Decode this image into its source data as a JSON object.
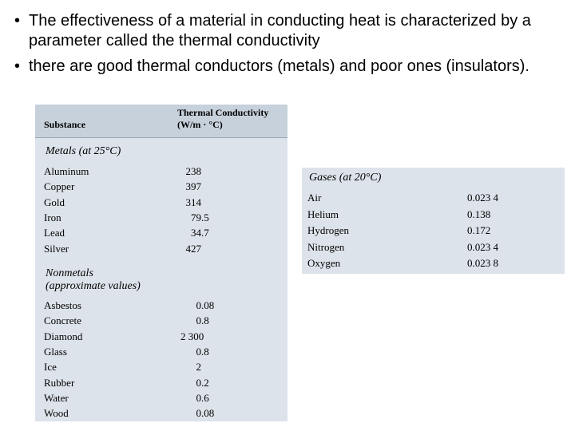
{
  "bullets": [
    "The effectiveness of a material in conducting heat is characterized by a parameter called the thermal conductivity",
    "there are good thermal conductors (metals) and poor ones (insulators)."
  ],
  "bullet_char": "•",
  "table1": {
    "col_substance": "Substance",
    "col_tc_line1": "Thermal Conductivity",
    "col_tc_line2": "(W/m · °C)",
    "metals_title": "Metals (at 25°C)",
    "metals": [
      {
        "name": "Aluminum",
        "value": "238"
      },
      {
        "name": "Copper",
        "value": "397"
      },
      {
        "name": "Gold",
        "value": "314"
      },
      {
        "name": "Iron",
        "value": "79.5"
      },
      {
        "name": "Lead",
        "value": "34.7"
      },
      {
        "name": "Silver",
        "value": "427"
      }
    ],
    "nonmetals_title_line1": "Nonmetals",
    "nonmetals_title_line2": "(approximate values)",
    "nonmetals": [
      {
        "name": "Asbestos",
        "value": "0.08"
      },
      {
        "name": "Concrete",
        "value": "0.8"
      },
      {
        "name": "Diamond",
        "value": "2 300"
      },
      {
        "name": "Glass",
        "value": "0.8"
      },
      {
        "name": "Ice",
        "value": "2"
      },
      {
        "name": "Rubber",
        "value": "0.2"
      },
      {
        "name": "Water",
        "value": "0.6"
      },
      {
        "name": "Wood",
        "value": "0.08"
      }
    ]
  },
  "table2": {
    "gases_title": "Gases (at 20°C)",
    "gases": [
      {
        "name": "Air",
        "value": "0.023 4"
      },
      {
        "name": "Helium",
        "value": "0.138"
      },
      {
        "name": "Hydrogen",
        "value": "0.172"
      },
      {
        "name": "Nitrogen",
        "value": "0.023 4"
      },
      {
        "name": "Oxygen",
        "value": "0.023 8"
      }
    ]
  }
}
